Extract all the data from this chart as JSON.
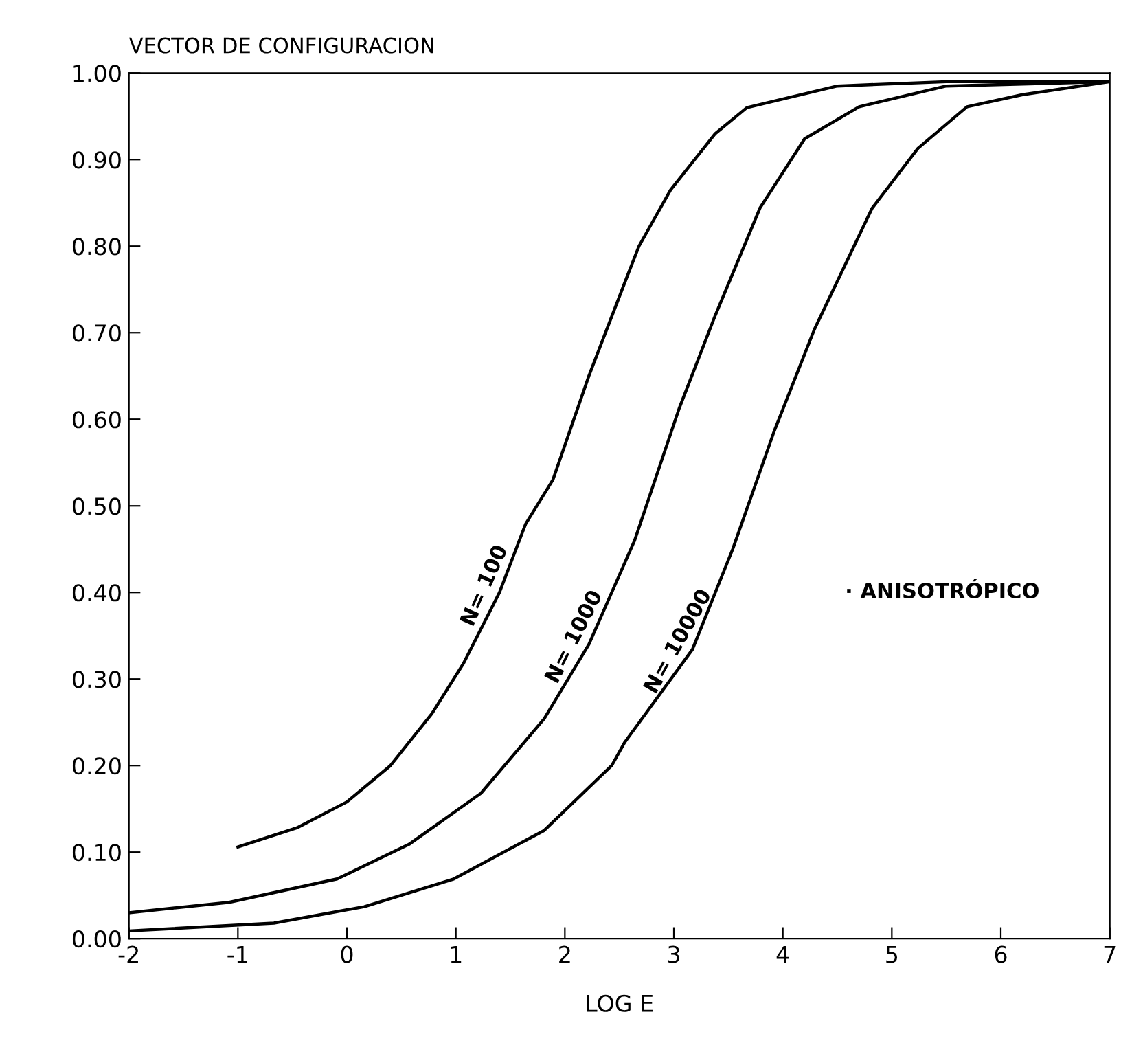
{
  "chart_data": {
    "type": "line",
    "title": "VECTOR DE CONFIGURACION",
    "xlabel": "LOG E",
    "xlim": [
      -2,
      7
    ],
    "xticks": [
      -2,
      -1,
      0,
      1,
      2,
      3,
      4,
      5,
      6,
      7
    ],
    "ylim": [
      0,
      1
    ],
    "yticks": [
      {
        "value": 0,
        "label": "0.00"
      },
      {
        "value": 0.1,
        "label": "0.10"
      },
      {
        "value": 0.2,
        "label": "0.20"
      },
      {
        "value": 0.3,
        "label": "0.30"
      },
      {
        "value": 0.4,
        "label": "0.40"
      },
      {
        "value": 0.5,
        "label": "0.50"
      },
      {
        "value": 0.6,
        "label": "0.60"
      },
      {
        "value": 0.7,
        "label": "0.70"
      },
      {
        "value": 0.8,
        "label": "0.80"
      },
      {
        "value": 0.9,
        "label": "0.90"
      },
      {
        "value": 1,
        "label": "1.00"
      }
    ],
    "grid": false,
    "legend": false,
    "marker": "none",
    "line_style": "solid",
    "series": [
      {
        "name": "N= 100",
        "color": "#000000",
        "x": [
          -1.0,
          -0.46,
          0.0,
          0.4,
          0.78,
          1.07,
          1.4,
          1.64,
          1.89,
          2.22,
          2.55,
          2.68,
          2.97,
          3.38,
          3.67,
          4.5,
          5.5,
          7
        ],
        "values": [
          0.106,
          0.128,
          0.158,
          0.2,
          0.26,
          0.318,
          0.4,
          0.479,
          0.53,
          0.65,
          0.758,
          0.8,
          0.865,
          0.93,
          0.96,
          0.985,
          0.99,
          0.99
        ]
      },
      {
        "name": "N= 1000",
        "color": "#000000",
        "x": [
          -2,
          -1.08,
          -0.09,
          0.57,
          1.23,
          1.81,
          2.22,
          2.64,
          3.05,
          3.38,
          3.79,
          4.2,
          4.7,
          5.5,
          7
        ],
        "values": [
          0.03,
          0.042,
          0.069,
          0.109,
          0.168,
          0.254,
          0.34,
          0.46,
          0.613,
          0.72,
          0.844,
          0.924,
          0.961,
          0.985,
          0.99
        ]
      },
      {
        "name": "N= 10000",
        "color": "#000000",
        "x": [
          -2,
          -0.67,
          0.16,
          0.98,
          1.81,
          2.43,
          2.55,
          3.17,
          3.54,
          3.92,
          4.29,
          4.82,
          5.24,
          5.69,
          6.2,
          7
        ],
        "values": [
          0.009,
          0.018,
          0.037,
          0.069,
          0.125,
          0.2,
          0.227,
          0.334,
          0.45,
          0.586,
          0.704,
          0.844,
          0.913,
          0.961,
          0.975,
          0.99
        ]
      }
    ],
    "annotations": [
      "· ANISOTRÓPICO"
    ]
  }
}
